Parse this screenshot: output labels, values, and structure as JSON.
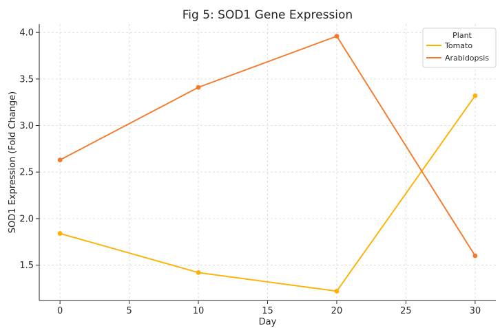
{
  "chart_data": {
    "type": "line",
    "title": "Fig 5: SOD1 Gene Expression",
    "xlabel": "Day",
    "ylabel": "SOD1 Expression (Fold Change)",
    "x": [
      0,
      10,
      20,
      30
    ],
    "series": [
      {
        "name": "Tomato",
        "values": [
          1.84,
          1.42,
          1.22,
          3.32
        ],
        "color": "#FFB000"
      },
      {
        "name": "Arabidopsis",
        "values": [
          2.63,
          3.41,
          3.96,
          1.6
        ],
        "color": "#F5792A"
      }
    ],
    "xlim": [
      -1.5,
      31.5
    ],
    "ylim": [
      1.12,
      4.09
    ],
    "xticks": [
      0,
      5,
      10,
      15,
      20,
      25,
      30
    ],
    "yticks": [
      1.5,
      2.0,
      2.5,
      3.0,
      3.5,
      4.0
    ],
    "xtick_labels": [
      "0",
      "5",
      "10",
      "15",
      "20",
      "25",
      "30"
    ],
    "ytick_labels": [
      "1.5",
      "2.0",
      "2.5",
      "3.0",
      "3.5",
      "4.0"
    ],
    "grid": true,
    "grid_style": "dashed",
    "legend": {
      "title": "Plant",
      "position": "top-right"
    }
  }
}
